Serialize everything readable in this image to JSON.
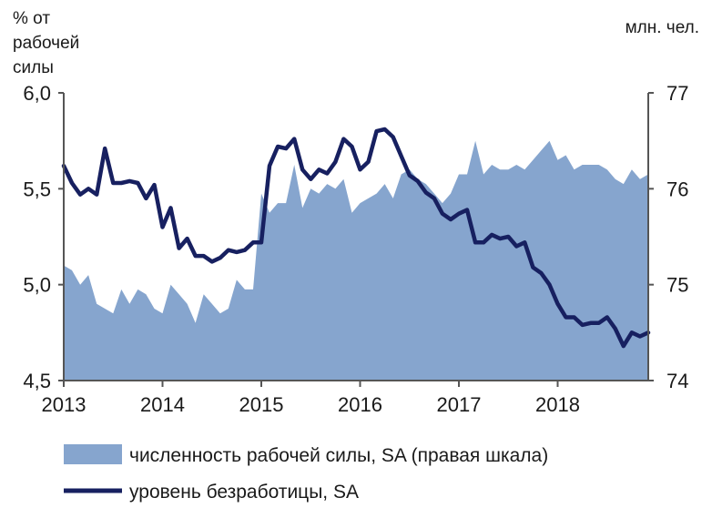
{
  "chart_data": {
    "type": "area",
    "title": "",
    "left_axis_label": [
      "% от",
      "рабочей",
      "силы"
    ],
    "right_axis_label": "млн. чел.",
    "x_ticks": [
      "2013",
      "2014",
      "2015",
      "2016",
      "2017",
      "2018"
    ],
    "x_range": [
      2013.0,
      2018.917
    ],
    "y_left": {
      "ylim": [
        4.5,
        6.0
      ],
      "ticks": [
        "4,5",
        "5,0",
        "5,5",
        "6,0"
      ],
      "tick_values": [
        4.5,
        5.0,
        5.5,
        6.0
      ]
    },
    "y_right": {
      "ylim": [
        74,
        77
      ],
      "ticks": [
        "74",
        "75",
        "76",
        "77"
      ],
      "tick_values": [
        74,
        75,
        76,
        77
      ]
    },
    "grid": false,
    "legend_position": "bottom",
    "colors": {
      "area": "#86a5ce",
      "line": "#172060",
      "axis": "#555555"
    },
    "series": [
      {
        "name": "численность рабочей силы, SA (правая шкала)",
        "type": "area",
        "axis": "right",
        "values": [
          75.2,
          75.15,
          75.0,
          75.1,
          74.8,
          74.75,
          74.7,
          74.95,
          74.8,
          74.95,
          74.9,
          74.75,
          74.7,
          75.0,
          74.9,
          74.8,
          74.6,
          74.9,
          74.8,
          74.7,
          74.75,
          75.05,
          74.95,
          74.95,
          75.95,
          75.75,
          75.85,
          75.85,
          76.25,
          75.8,
          76.0,
          75.95,
          76.05,
          76.0,
          76.1,
          75.75,
          75.85,
          75.9,
          75.95,
          76.05,
          75.9,
          76.15,
          76.2,
          76.1,
          76.05,
          75.95,
          75.85,
          75.95,
          76.15,
          76.15,
          76.5,
          76.15,
          76.25,
          76.2,
          76.2,
          76.25,
          76.2,
          76.3,
          76.4,
          76.5,
          76.3,
          76.35,
          76.2,
          76.25,
          76.25,
          76.25,
          76.2,
          76.1,
          76.05,
          76.2,
          76.1,
          76.15
        ]
      },
      {
        "name": "уровень безработицы, SA",
        "type": "line",
        "axis": "left",
        "values": [
          5.62,
          5.53,
          5.47,
          5.5,
          5.47,
          5.71,
          5.53,
          5.53,
          5.54,
          5.53,
          5.45,
          5.52,
          5.3,
          5.4,
          5.19,
          5.24,
          5.15,
          5.15,
          5.12,
          5.14,
          5.18,
          5.17,
          5.18,
          5.22,
          5.22,
          5.62,
          5.72,
          5.71,
          5.76,
          5.6,
          5.55,
          5.6,
          5.58,
          5.64,
          5.76,
          5.72,
          5.6,
          5.64,
          5.8,
          5.81,
          5.77,
          5.67,
          5.57,
          5.54,
          5.48,
          5.45,
          5.37,
          5.34,
          5.37,
          5.39,
          5.22,
          5.22,
          5.26,
          5.24,
          5.25,
          5.2,
          5.22,
          5.09,
          5.06,
          5.0,
          4.9,
          4.83,
          4.83,
          4.79,
          4.8,
          4.8,
          4.83,
          4.77,
          4.68,
          4.75,
          4.73,
          4.75
        ]
      }
    ]
  }
}
